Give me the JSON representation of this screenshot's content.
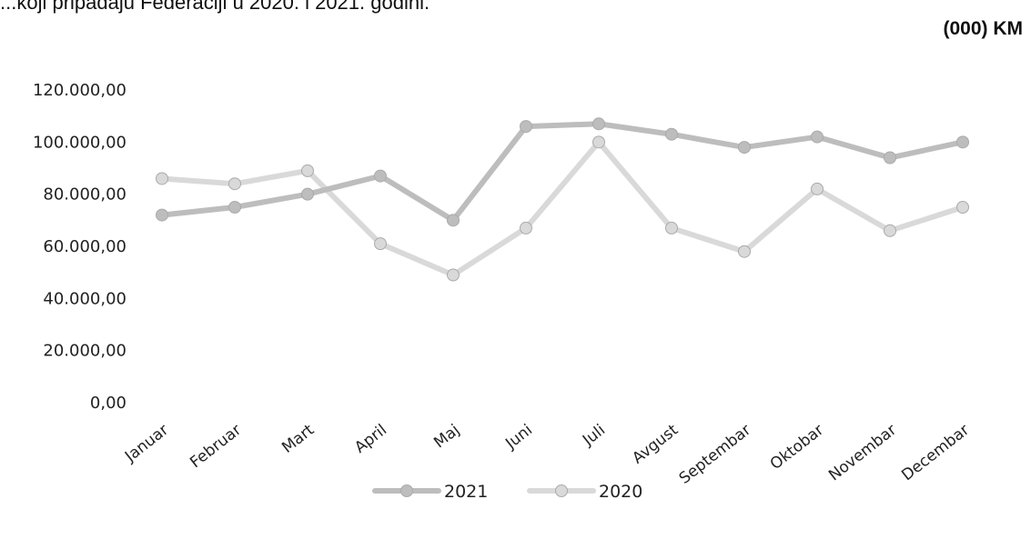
{
  "header": {
    "title_fragment": "...koji pripadaju Federaciji u 2020. i 2021. godini.",
    "unit": "(000) KM"
  },
  "chart_data": {
    "type": "line",
    "categories": [
      "Januar",
      "Februar",
      "Mart",
      "April",
      "Maj",
      "Juni",
      "Juli",
      "Avgust",
      "Septembar",
      "Oktobar",
      "Novembar",
      "Decembar"
    ],
    "series": [
      {
        "name": "2021",
        "values": [
          72000,
          75000,
          80000,
          87000,
          70000,
          106000,
          107000,
          103000,
          98000,
          102000,
          94000,
          100000
        ],
        "color": "#bdbdbd"
      },
      {
        "name": "2020",
        "values": [
          86000,
          84000,
          89000,
          61000,
          49000,
          67000,
          100000,
          67000,
          58000,
          82000,
          66000,
          75000
        ],
        "color": "#d9d9d9"
      }
    ],
    "y_ticks": [
      "0,00",
      "20.000,00",
      "40.000,00",
      "60.000,00",
      "80.000,00",
      "100.000,00",
      "120.000,00"
    ],
    "ylim": [
      0,
      120000
    ],
    "grid": false,
    "legend_position": "bottom"
  }
}
